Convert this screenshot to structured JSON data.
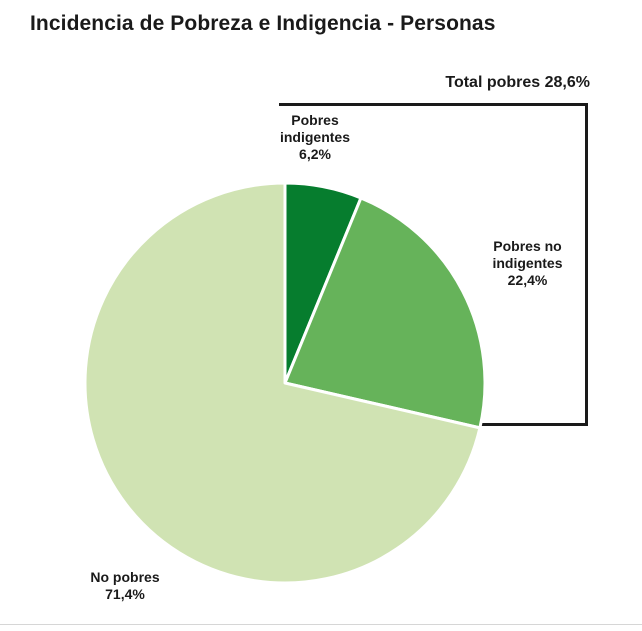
{
  "title": "Incidencia de Pobreza e Indigencia - Personas",
  "total_label": "Total pobres 28,6%",
  "chart_data": {
    "type": "pie",
    "title": "Incidencia de Pobreza e Indigencia - Personas",
    "annotation": "Total pobres 28,6%",
    "slices": [
      {
        "label": "Pobres indigentes",
        "value": 6.2,
        "value_label": "6,2%",
        "color": "#067d2e"
      },
      {
        "label": "Pobres no indigentes",
        "value": 22.4,
        "value_label": "22,4%",
        "color": "#66b35a"
      },
      {
        "label": "No pobres",
        "value": 71.4,
        "value_label": "71,4%",
        "color": "#d0e3b3"
      }
    ]
  },
  "labels": {
    "indigentes": {
      "line1": "Pobres",
      "line2": "indigentes",
      "line3": "6,2%"
    },
    "no_indigentes": {
      "line1": "Pobres no",
      "line2": "indigentes",
      "line3": "22,4%"
    },
    "no_pobres": {
      "line1": "No pobres",
      "line2": "71,4%"
    }
  }
}
